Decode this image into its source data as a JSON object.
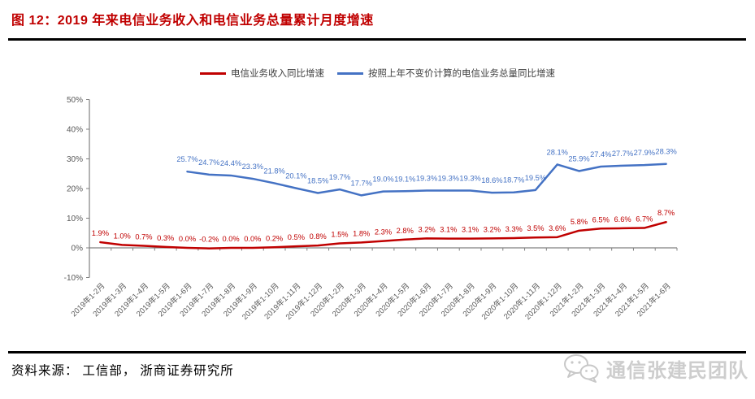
{
  "title": "图 12：2019 年来电信业务收入和电信业务总量累计月度增速",
  "source_line": "资料来源： 工信部， 浙商证券研究所",
  "watermark": {
    "label": "通信张建民团队",
    "icon": "wechat-icon"
  },
  "colors": {
    "accent": "#c00000",
    "revenue_line": "#c00000",
    "volume_line": "#4472c4",
    "axis": "#808080",
    "tick_label": "#595959",
    "watermark": "#cdcdcd"
  },
  "chart_data": {
    "type": "line",
    "title": "2019 年来电信业务收入和电信业务总量累计月度增速",
    "xlabel": "",
    "ylabel": "",
    "ylim": [
      -10,
      50
    ],
    "grid": false,
    "legend_position": "top",
    "data_labels": true,
    "yticks": [
      {
        "v": -10,
        "label": "-10%"
      },
      {
        "v": 0,
        "label": "0%"
      },
      {
        "v": 10,
        "label": "10%"
      },
      {
        "v": 20,
        "label": "20%"
      },
      {
        "v": 30,
        "label": "30%"
      },
      {
        "v": 40,
        "label": "40%"
      },
      {
        "v": 50,
        "label": "50%"
      }
    ],
    "categories": [
      "2019年1-2月",
      "2019年1-3月",
      "2019年1-4月",
      "2019年1-5月",
      "2019年1-6月",
      "2019年1-7月",
      "2019年1-8月",
      "2019年1-9月",
      "2019年1-10月",
      "2019年1-11月",
      "2019年1-12月",
      "2020年1-2月",
      "2020年1-3月",
      "2020年1-4月",
      "2020年1-5月",
      "2020年1-6月",
      "2020年1-7月",
      "2020年1-8月",
      "2020年1-9月",
      "2020年1-10月",
      "2020年1-11月",
      "2020年1-12月",
      "2021年1-2月",
      "2021年1-3月",
      "2021年1-4月",
      "2021年1-5月",
      "2021年1-6月"
    ],
    "series": [
      {
        "name": "电信业务收入同比增速",
        "color": "#c00000",
        "start_index": 0,
        "values": [
          1.9,
          1.0,
          0.7,
          0.3,
          0.0,
          -0.2,
          0.0,
          0.0,
          0.2,
          0.5,
          0.8,
          1.5,
          1.8,
          2.3,
          2.8,
          3.2,
          3.1,
          3.1,
          3.2,
          3.3,
          3.5,
          3.6,
          5.8,
          6.5,
          6.6,
          6.7,
          8.7
        ]
      },
      {
        "name": "按照上年不变价计算的电信业务总量同比增速",
        "color": "#4472c4",
        "start_index": 4,
        "values": [
          25.7,
          24.7,
          24.4,
          23.3,
          21.8,
          20.1,
          18.5,
          19.7,
          17.7,
          19.0,
          19.1,
          19.3,
          19.3,
          19.3,
          18.6,
          18.7,
          19.5,
          28.1,
          25.9,
          27.4,
          27.7,
          27.9,
          28.3
        ]
      }
    ]
  }
}
